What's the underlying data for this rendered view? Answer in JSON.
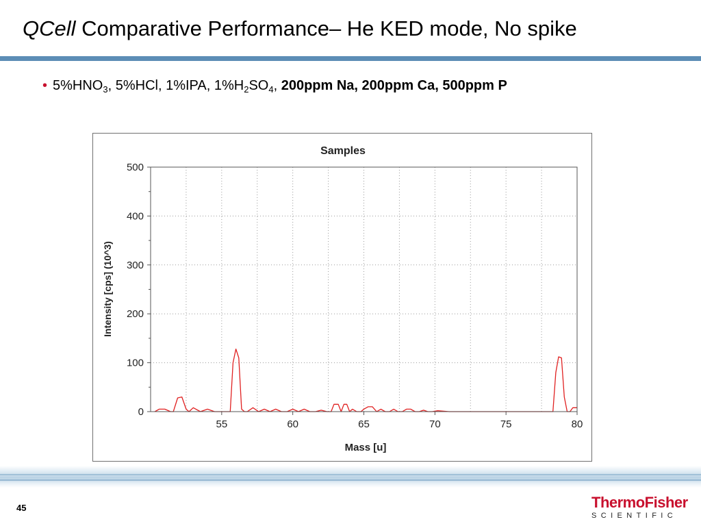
{
  "slide": {
    "title_italic": "QCell",
    "title_rest": " Comparative Performance– He KED mode, No spike",
    "bullet": {
      "t1": "5%HNO",
      "s1": "3",
      "t2": ", 5%HCl, 1%IPA, 1%H",
      "s2": "2",
      "t3": "SO",
      "s3": "4",
      "t4": ",",
      "bold": "200ppm Na, 200ppm Ca, 500ppm P"
    },
    "page_number": "45",
    "logo": {
      "top": "ThermoFisher",
      "bottom": "SCIENTIFIC"
    }
  },
  "colors": {
    "accent_bar": "#5c8db6",
    "trace": "#e02020",
    "brand_red": "#c8102e"
  },
  "chart_data": {
    "type": "line",
    "title": "Samples",
    "xlabel": "Mass [u]",
    "ylabel": "Intensity [cps] (10^3)",
    "xlim": [
      50,
      80
    ],
    "ylim": [
      0,
      500
    ],
    "xticks": [
      55,
      60,
      65,
      70,
      75,
      80
    ],
    "yticks": [
      0,
      100,
      200,
      300,
      400,
      500
    ],
    "grid": true,
    "series": [
      {
        "x": [
          50.3,
          50.6,
          51.0,
          51.4,
          51.6,
          51.9,
          52.2,
          52.5,
          52.7,
          53.0,
          53.5,
          54.0,
          54.5,
          55.0,
          55.4,
          55.6,
          55.8,
          56.0,
          56.2,
          56.4,
          56.6,
          56.8,
          57.2,
          57.6,
          58.0,
          58.4,
          58.8,
          59.2,
          59.6,
          60.0,
          60.4,
          60.8,
          61.2,
          61.6,
          62.0,
          62.4,
          62.7,
          62.9,
          63.2,
          63.4,
          63.6,
          63.8,
          64.0,
          64.2,
          64.5,
          64.8,
          65.0,
          65.3,
          65.6,
          65.9,
          66.2,
          66.5,
          66.8,
          67.1,
          67.4,
          67.7,
          68.0,
          68.3,
          68.6,
          68.9,
          69.2,
          69.5,
          69.8,
          70.2,
          71.0,
          72.0,
          73.0,
          74.0,
          75.0,
          76.0,
          77.0,
          78.0,
          78.3,
          78.5,
          78.7,
          78.9,
          79.1,
          79.3,
          79.5,
          79.7,
          79.9,
          80.0
        ],
        "y": [
          0,
          5,
          5,
          0,
          0,
          28,
          30,
          5,
          0,
          8,
          0,
          5,
          0,
          0,
          0,
          0,
          100,
          128,
          110,
          5,
          0,
          0,
          8,
          0,
          5,
          0,
          5,
          0,
          0,
          5,
          0,
          5,
          0,
          0,
          3,
          0,
          0,
          15,
          15,
          0,
          15,
          15,
          0,
          5,
          0,
          0,
          5,
          10,
          10,
          0,
          5,
          0,
          0,
          5,
          0,
          0,
          5,
          5,
          0,
          0,
          3,
          0,
          0,
          2,
          0,
          0,
          0,
          0,
          0,
          0,
          0,
          0,
          0,
          80,
          112,
          110,
          30,
          0,
          0,
          8,
          8,
          8
        ]
      }
    ]
  }
}
